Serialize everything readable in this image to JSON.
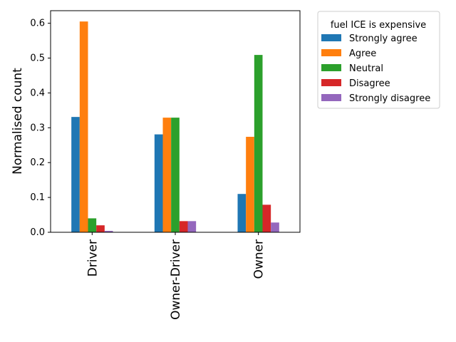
{
  "chart_data": {
    "type": "bar",
    "categories": [
      "Driver",
      "Owner-Driver",
      "Owner"
    ],
    "series": [
      {
        "name": "Strongly agree",
        "color": "#1f77b4",
        "values": [
          0.331,
          0.281,
          0.11
        ]
      },
      {
        "name": "Agree",
        "color": "#ff7f0e",
        "values": [
          0.605,
          0.329,
          0.274
        ]
      },
      {
        "name": "Neutral",
        "color": "#2ca02c",
        "values": [
          0.04,
          0.329,
          0.509
        ]
      },
      {
        "name": "Disagree",
        "color": "#d62728",
        "values": [
          0.02,
          0.032,
          0.079
        ]
      },
      {
        "name": "Strongly disagree",
        "color": "#9467bd",
        "values": [
          0.004,
          0.032,
          0.028
        ]
      }
    ],
    "title": "",
    "xlabel": "",
    "ylabel": "Normalised count",
    "ylim": [
      0,
      0.636
    ],
    "yticks": [
      "0.0",
      "0.1",
      "0.2",
      "0.3",
      "0.4",
      "0.5",
      "0.6"
    ],
    "legend": {
      "title": "fuel ICE is expensive",
      "placement": "outside-upper-right"
    },
    "grid": false
  }
}
